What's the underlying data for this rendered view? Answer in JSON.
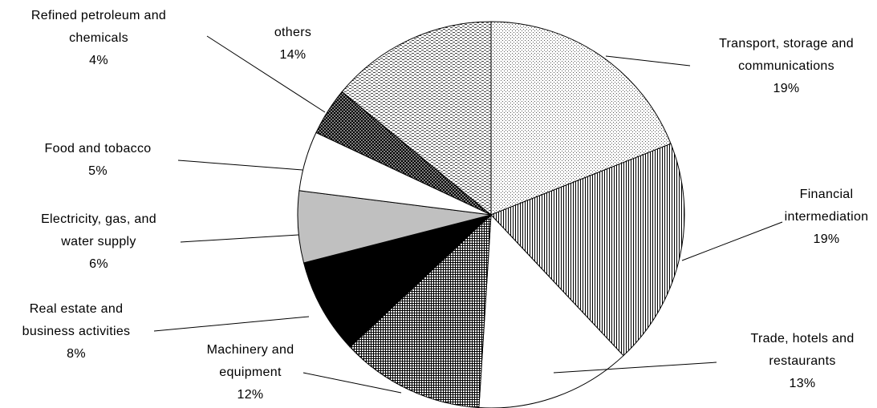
{
  "chart_data": {
    "type": "pie",
    "categories": [
      "Transport, storage and communications",
      "Financial intermediation",
      "Trade, hotels and restaurants",
      "Machinery and equipment",
      "Real estate and business activities",
      "Electricity, gas, and water supply",
      "Food and tobacco",
      "Refined petroleum and chemicals",
      "others"
    ],
    "values": [
      19,
      19,
      13,
      12,
      8,
      6,
      5,
      4,
      14
    ],
    "value_labels": [
      "19%",
      "19%",
      "13%",
      "12%",
      "8%",
      "6%",
      "5%",
      "4%",
      "14%"
    ],
    "colors": [
      "#ffffff",
      "#ffffff",
      "#ffffff",
      "#ffffff",
      "#000000",
      "#c0c0c0",
      "#ffffff",
      "#808080",
      "#ffffff"
    ],
    "patterns": [
      "dots",
      "vertical",
      "none",
      "grid",
      "none",
      "none",
      "none",
      "crosshatch",
      "dashes"
    ]
  }
}
